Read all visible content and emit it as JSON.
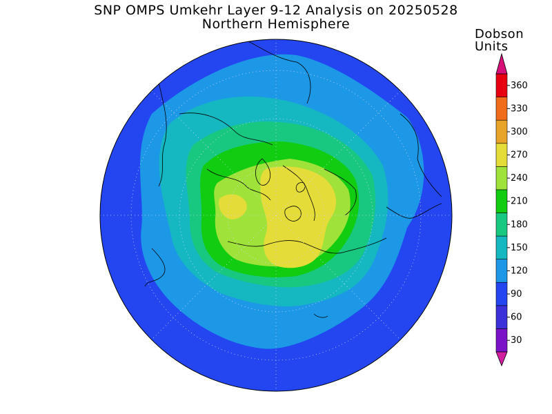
{
  "title": "SNP OMPS Umkehr Layer 9-12 Analysis on 20250528",
  "subtitle": "Northern Hemisphere",
  "colorbar": {
    "unit_line1": "Dobson",
    "unit_line2": "Units",
    "levels": [
      30,
      60,
      90,
      120,
      150,
      180,
      210,
      240,
      270,
      300,
      330,
      360
    ],
    "band_colors": [
      "#7a12c8",
      "#3c30d8",
      "#2346f0",
      "#1d98e6",
      "#15b8c0",
      "#19c880",
      "#11cc11",
      "#9fe23a",
      "#e4dc38",
      "#e8a428",
      "#f06c1a",
      "#e60010"
    ],
    "arrow_low_color": "#d21fa0",
    "arrow_high_color": "#d8107a"
  },
  "map": {
    "projection": "north-polar-stereographic",
    "background_level_color": "#2346f0",
    "grid": "dotted",
    "coastlines": true
  }
}
